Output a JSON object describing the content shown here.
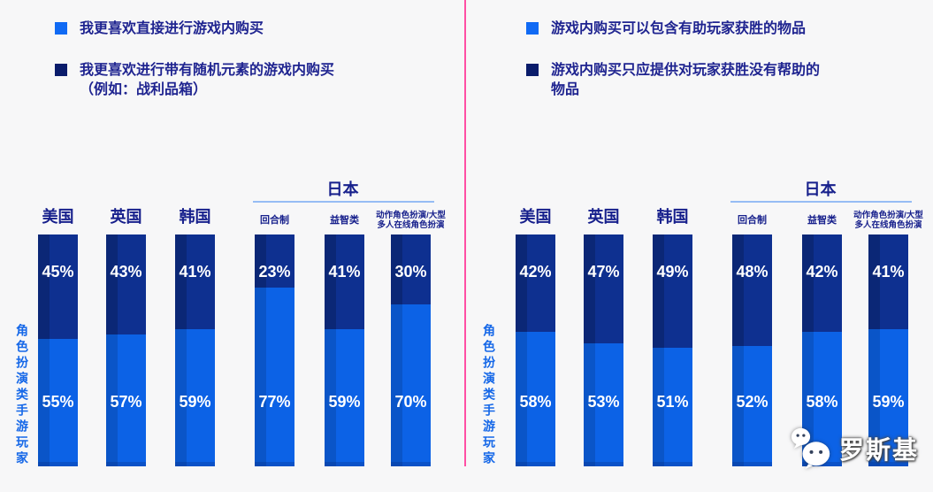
{
  "background_color": "#F7F7F8",
  "divider_color": "#FF4FA4",
  "accent_colors": {
    "bar_light": "#0C62E6",
    "bar_light_edge": "#0A55C8",
    "bar_dark": "#0E3090",
    "bar_dark_edge": "#0B2776",
    "japan_underline": "#96BCF4",
    "heading_navy": "#17208C",
    "axis_label_blue": "#1668E8"
  },
  "watermark": {
    "icon": "wechat-icon",
    "text": "罗斯基"
  },
  "chart_data": [
    {
      "type": "bar",
      "stacked": true,
      "unit": "%",
      "ylabel": "角色扮演类手游玩家",
      "legend": [
        {
          "color": "#106AF4",
          "lines": [
            "我更喜欢直接进行游戏内购买"
          ]
        },
        {
          "color": "#0A1C6B",
          "lines": [
            "我更喜欢进行带有随机元素的游戏内购买",
            "（例如：战利品箱）"
          ]
        }
      ],
      "groups": [
        {
          "label": "美国",
          "cols": [
            0
          ]
        },
        {
          "label": "英国",
          "cols": [
            1
          ]
        },
        {
          "label": "韩国",
          "cols": [
            2
          ]
        },
        {
          "label": "日本",
          "cols": [
            3,
            4,
            5
          ],
          "underline": true,
          "sub_labels": [
            [
              "回合制"
            ],
            [
              "益智类"
            ],
            [
              "动作角色扮演/大型",
              "多人在线角色扮演"
            ]
          ]
        }
      ],
      "categories": [
        "美国",
        "英国",
        "韩国",
        "日本·回合制",
        "日本·益智类",
        "日本·动作角色扮演/大型多人在线角色扮演"
      ],
      "series": [
        {
          "name": "我更喜欢直接进行游戏内购买",
          "position": "bottom",
          "values": [
            55,
            57,
            59,
            77,
            59,
            70
          ]
        },
        {
          "name": "我更喜欢进行带有随机元素的游戏内购买（例如：战利品箱）",
          "position": "top",
          "values": [
            45,
            43,
            41,
            23,
            41,
            30
          ]
        }
      ]
    },
    {
      "type": "bar",
      "stacked": true,
      "unit": "%",
      "ylabel": "角色扮演类手游玩家",
      "legend": [
        {
          "color": "#106AF4",
          "lines": [
            "游戏内购买可以包含有助玩家获胜的物品"
          ]
        },
        {
          "color": "#0A1C6B",
          "lines": [
            "游戏内购买只应提供对玩家获胜没有帮助的",
            "物品"
          ]
        }
      ],
      "groups": [
        {
          "label": "美国",
          "cols": [
            0
          ]
        },
        {
          "label": "英国",
          "cols": [
            1
          ]
        },
        {
          "label": "韩国",
          "cols": [
            2
          ]
        },
        {
          "label": "日本",
          "cols": [
            3,
            4,
            5
          ],
          "underline": true,
          "sub_labels": [
            [
              "回合制"
            ],
            [
              "益智类"
            ],
            [
              "动作角色扮演/大型",
              "多人在线角色扮演"
            ]
          ]
        }
      ],
      "categories": [
        "美国",
        "英国",
        "韩国",
        "日本·回合制",
        "日本·益智类",
        "日本·动作角色扮演/大型多人在线角色扮演"
      ],
      "series": [
        {
          "name": "游戏内购买可以包含有助玩家获胜的物品",
          "position": "bottom",
          "values": [
            58,
            53,
            51,
            52,
            58,
            59
          ]
        },
        {
          "name": "游戏内购买只应提供对玩家获胜没有帮助的物品",
          "position": "top",
          "values": [
            42,
            47,
            49,
            48,
            42,
            41
          ]
        }
      ]
    }
  ]
}
